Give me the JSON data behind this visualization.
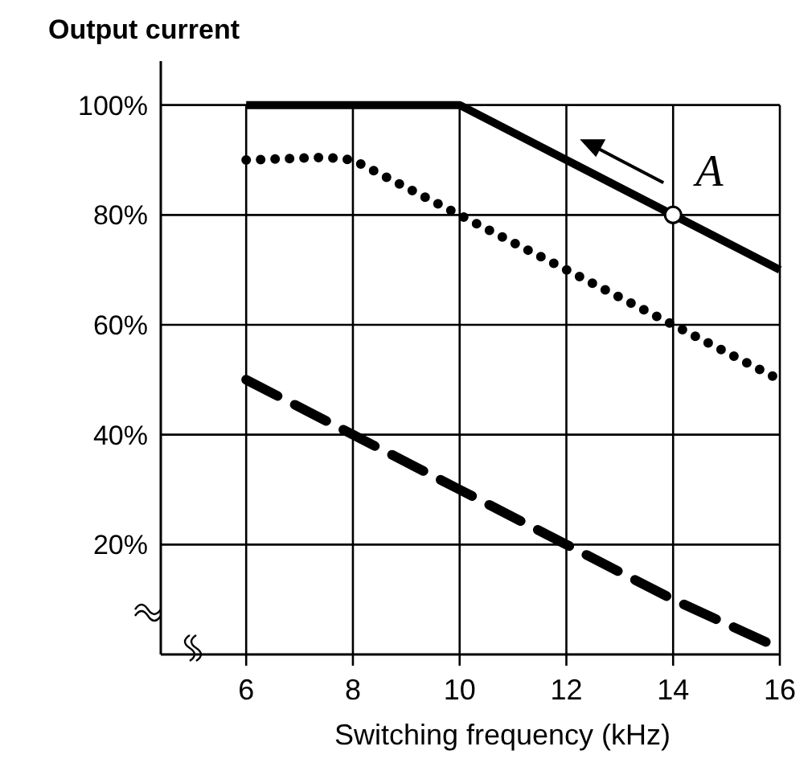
{
  "chart_data": {
    "type": "line",
    "title": "Output current",
    "xlabel": "Switching frequency (kHz)",
    "xlim": [
      4.4,
      16
    ],
    "ylim": [
      0,
      108
    ],
    "xticks": [
      6,
      8,
      10,
      12,
      14,
      16
    ],
    "yticks": [
      {
        "value": 20,
        "label": "20%"
      },
      {
        "value": 40,
        "label": "40%"
      },
      {
        "value": 60,
        "label": "60%"
      },
      {
        "value": 80,
        "label": "80%"
      },
      {
        "value": 100,
        "label": "100%"
      }
    ],
    "grid": true,
    "marker": "none",
    "series": [
      {
        "color": "#000000",
        "line_style": "solid",
        "x": [
          6,
          10,
          16
        ],
        "values": [
          100,
          100,
          70
        ]
      },
      {
        "color": "#000000",
        "line_style": "dotted",
        "x": [
          6,
          7.5,
          8,
          10,
          12,
          14,
          16
        ],
        "values": [
          90,
          90.5,
          90,
          80,
          70,
          60,
          50
        ]
      },
      {
        "color": "#000000",
        "line_style": "dashed",
        "x": [
          6,
          8,
          10,
          12,
          14,
          15.8
        ],
        "values": [
          50,
          40,
          30,
          20,
          10,
          2
        ]
      },
      {
        "type": "scatter",
        "color": "#ffffff",
        "marker": "circle",
        "x": [
          14
        ],
        "values": [
          80
        ]
      }
    ],
    "annotations": [
      {
        "text": "A",
        "x": 14,
        "y": 80
      }
    ]
  }
}
